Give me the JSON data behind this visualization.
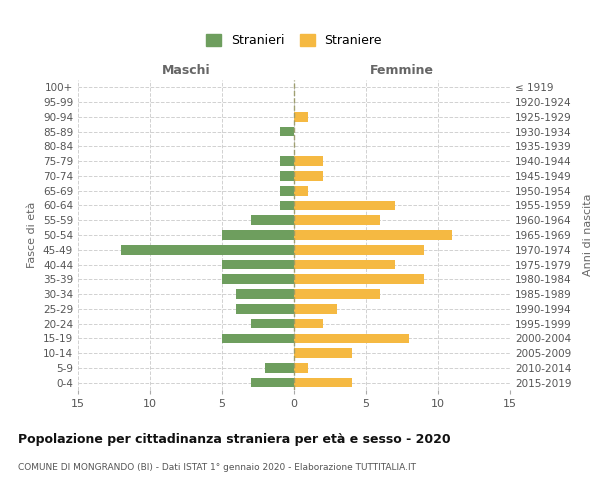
{
  "age_groups": [
    "0-4",
    "5-9",
    "10-14",
    "15-19",
    "20-24",
    "25-29",
    "30-34",
    "35-39",
    "40-44",
    "45-49",
    "50-54",
    "55-59",
    "60-64",
    "65-69",
    "70-74",
    "75-79",
    "80-84",
    "85-89",
    "90-94",
    "95-99",
    "100+"
  ],
  "birth_years": [
    "2015-2019",
    "2010-2014",
    "2005-2009",
    "2000-2004",
    "1995-1999",
    "1990-1994",
    "1985-1989",
    "1980-1984",
    "1975-1979",
    "1970-1974",
    "1965-1969",
    "1960-1964",
    "1955-1959",
    "1950-1954",
    "1945-1949",
    "1940-1944",
    "1935-1939",
    "1930-1934",
    "1925-1929",
    "1920-1924",
    "≤ 1919"
  ],
  "males": [
    3,
    2,
    0,
    5,
    3,
    4,
    4,
    5,
    5,
    12,
    5,
    3,
    1,
    1,
    1,
    1,
    0,
    1,
    0,
    0,
    0
  ],
  "females": [
    4,
    1,
    4,
    8,
    2,
    3,
    6,
    9,
    7,
    9,
    11,
    6,
    7,
    1,
    2,
    2,
    0,
    0,
    1,
    0,
    0
  ],
  "male_color": "#6e9e5e",
  "female_color": "#f5b942",
  "title": "Popolazione per cittadinanza straniera per età e sesso - 2020",
  "subtitle": "COMUNE DI MONGRANDO (BI) - Dati ISTAT 1° gennaio 2020 - Elaborazione TUTTITALIA.IT",
  "xlabel_left": "Maschi",
  "xlabel_right": "Femmine",
  "ylabel_left": "Fasce di età",
  "ylabel_right": "Anni di nascita",
  "legend_male": "Stranieri",
  "legend_female": "Straniere",
  "xlim": 15,
  "background_color": "#ffffff",
  "grid_color": "#cccccc"
}
